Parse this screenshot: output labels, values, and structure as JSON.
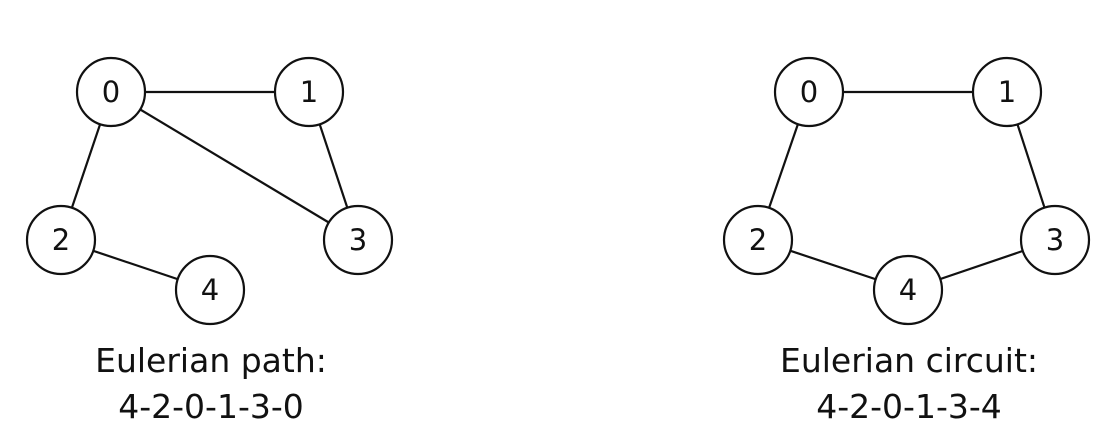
{
  "graphs": [
    {
      "id": "path-graph",
      "caption_title": "Eulerian path:",
      "caption_sequence": "4-2-0-1-3-0",
      "nodes": [
        "0",
        "1",
        "2",
        "3",
        "4"
      ],
      "edges": [
        [
          "0",
          "1"
        ],
        [
          "0",
          "2"
        ],
        [
          "0",
          "3"
        ],
        [
          "1",
          "3"
        ],
        [
          "2",
          "4"
        ]
      ]
    },
    {
      "id": "circuit-graph",
      "caption_title": "Eulerian circuit:",
      "caption_sequence": "4-2-0-1-3-4",
      "nodes": [
        "0",
        "1",
        "2",
        "3",
        "4"
      ],
      "edges": [
        [
          "0",
          "1"
        ],
        [
          "0",
          "2"
        ],
        [
          "1",
          "3"
        ],
        [
          "2",
          "4"
        ],
        [
          "3",
          "4"
        ]
      ]
    }
  ]
}
